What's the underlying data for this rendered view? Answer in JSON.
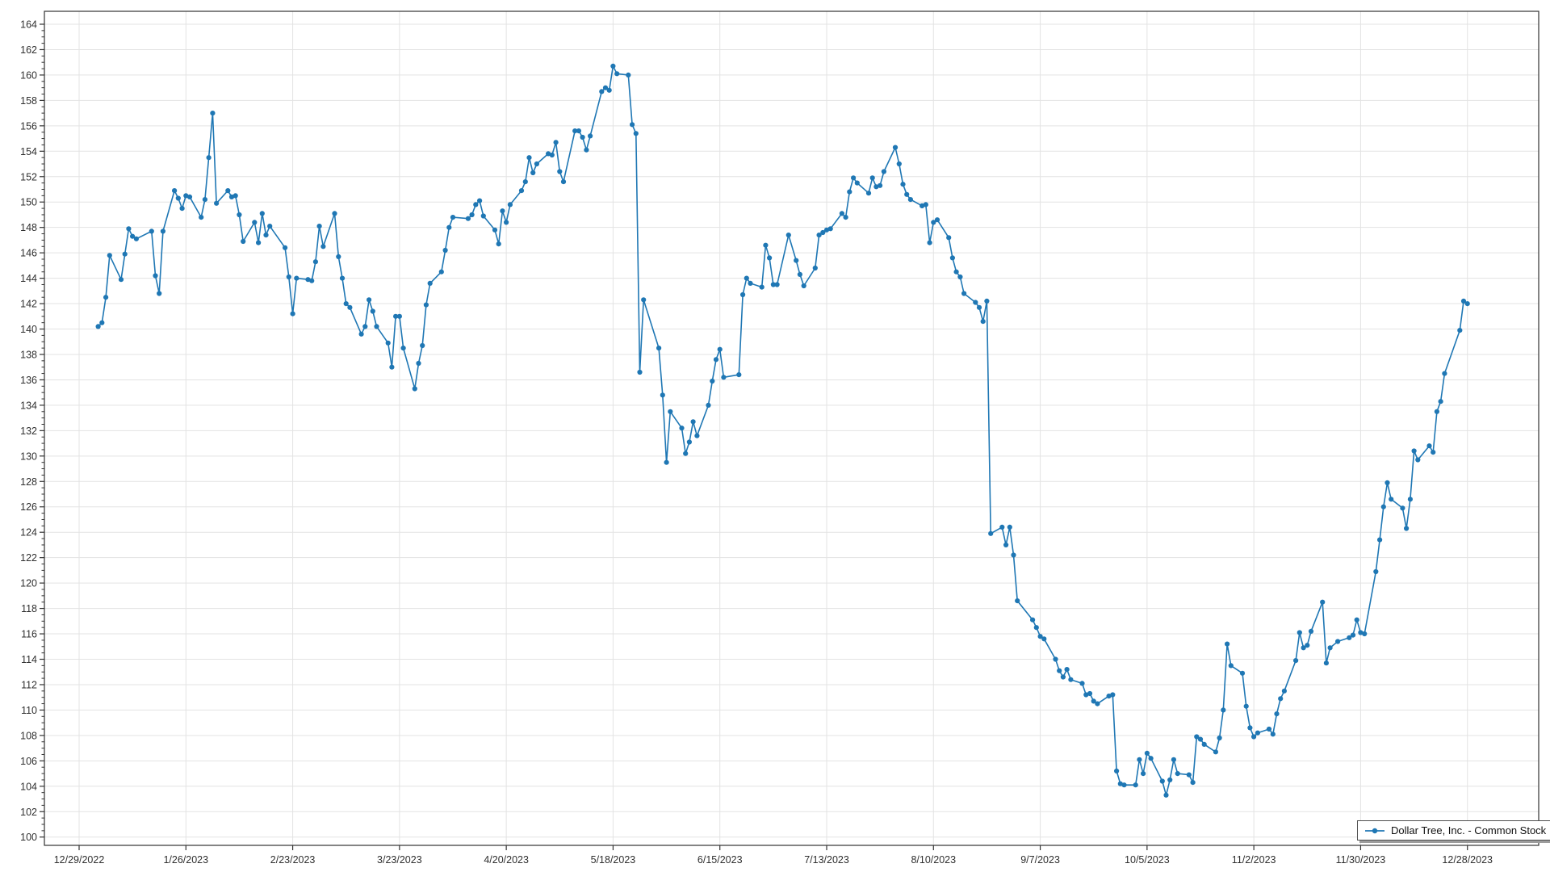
{
  "chart_data": {
    "type": "line",
    "title": "",
    "grid": true,
    "legend": {
      "position": "bottom-right",
      "label": "Dollar Tree, Inc. - Common Stock"
    },
    "x_axis": {
      "start_label": "12/29/2022",
      "labels": [
        "12/29/2022",
        "1/26/2023",
        "2/23/2023",
        "3/23/2023",
        "4/20/2023",
        "5/18/2023",
        "6/15/2023",
        "7/13/2023",
        "8/10/2023",
        "9/7/2023",
        "10/5/2023",
        "11/2/2023",
        "11/30/2023",
        "12/28/2023"
      ]
    },
    "y_axis": {
      "min": 100,
      "max": 164,
      "step": 2,
      "ticks": [
        100,
        102,
        104,
        106,
        108,
        110,
        112,
        114,
        116,
        118,
        120,
        122,
        124,
        126,
        128,
        130,
        132,
        134,
        136,
        138,
        140,
        142,
        144,
        146,
        148,
        150,
        152,
        154,
        156,
        158,
        160,
        162,
        164
      ]
    },
    "series": [
      {
        "name": "Dollar Tree, Inc. - Common Stock",
        "color": "#1f77b4",
        "dates": [
          "1/3/2023",
          "1/4/2023",
          "1/5/2023",
          "1/6/2023",
          "1/9/2023",
          "1/10/2023",
          "1/11/2023",
          "1/12/2023",
          "1/13/2023",
          "1/17/2023",
          "1/18/2023",
          "1/19/2023",
          "1/20/2023",
          "1/23/2023",
          "1/24/2023",
          "1/25/2023",
          "1/26/2023",
          "1/27/2023",
          "1/30/2023",
          "1/31/2023",
          "2/1/2023",
          "2/2/2023",
          "2/3/2023",
          "2/6/2023",
          "2/7/2023",
          "2/8/2023",
          "2/9/2023",
          "2/10/2023",
          "2/13/2023",
          "2/14/2023",
          "2/15/2023",
          "2/16/2023",
          "2/17/2023",
          "2/21/2023",
          "2/22/2023",
          "2/23/2023",
          "2/24/2023",
          "2/27/2023",
          "2/28/2023",
          "3/1/2023",
          "3/2/2023",
          "3/3/2023",
          "3/6/2023",
          "3/7/2023",
          "3/8/2023",
          "3/9/2023",
          "3/10/2023",
          "3/13/2023",
          "3/14/2023",
          "3/15/2023",
          "3/16/2023",
          "3/17/2023",
          "3/20/2023",
          "3/21/2023",
          "3/22/2023",
          "3/23/2023",
          "3/24/2023",
          "3/27/2023",
          "3/28/2023",
          "3/29/2023",
          "3/30/2023",
          "3/31/2023",
          "4/3/2023",
          "4/4/2023",
          "4/5/2023",
          "4/6/2023",
          "4/10/2023",
          "4/11/2023",
          "4/12/2023",
          "4/13/2023",
          "4/14/2023",
          "4/17/2023",
          "4/18/2023",
          "4/19/2023",
          "4/20/2023",
          "4/21/2023",
          "4/24/2023",
          "4/25/2023",
          "4/26/2023",
          "4/27/2023",
          "4/28/2023",
          "5/1/2023",
          "5/2/2023",
          "5/3/2023",
          "5/4/2023",
          "5/5/2023",
          "5/8/2023",
          "5/9/2023",
          "5/10/2023",
          "5/11/2023",
          "5/12/2023",
          "5/15/2023",
          "5/16/2023",
          "5/17/2023",
          "5/18/2023",
          "5/19/2023",
          "5/22/2023",
          "5/23/2023",
          "5/24/2023",
          "5/25/2023",
          "5/26/2023",
          "5/30/2023",
          "5/31/2023",
          "6/1/2023",
          "6/2/2023",
          "6/5/2023",
          "6/6/2023",
          "6/7/2023",
          "6/8/2023",
          "6/9/2023",
          "6/12/2023",
          "6/13/2023",
          "6/14/2023",
          "6/15/2023",
          "6/16/2023",
          "6/20/2023",
          "6/21/2023",
          "6/22/2023",
          "6/23/2023",
          "6/26/2023",
          "6/27/2023",
          "6/28/2023",
          "6/29/2023",
          "6/30/2023",
          "7/3/2023",
          "7/5/2023",
          "7/6/2023",
          "7/7/2023",
          "7/10/2023",
          "7/11/2023",
          "7/12/2023",
          "7/13/2023",
          "7/14/2023",
          "7/17/2023",
          "7/18/2023",
          "7/19/2023",
          "7/20/2023",
          "7/21/2023",
          "7/24/2023",
          "7/25/2023",
          "7/26/2023",
          "7/27/2023",
          "7/28/2023",
          "7/31/2023",
          "8/1/2023",
          "8/2/2023",
          "8/3/2023",
          "8/4/2023",
          "8/7/2023",
          "8/8/2023",
          "8/9/2023",
          "8/10/2023",
          "8/11/2023",
          "8/14/2023",
          "8/15/2023",
          "8/16/2023",
          "8/17/2023",
          "8/18/2023",
          "8/21/2023",
          "8/22/2023",
          "8/23/2023",
          "8/24/2023",
          "8/25/2023",
          "8/28/2023",
          "8/29/2023",
          "8/30/2023",
          "8/31/2023",
          "9/1/2023",
          "9/5/2023",
          "9/6/2023",
          "9/7/2023",
          "9/8/2023",
          "9/11/2023",
          "9/12/2023",
          "9/13/2023",
          "9/14/2023",
          "9/15/2023",
          "9/18/2023",
          "9/19/2023",
          "9/20/2023",
          "9/21/2023",
          "9/22/2023",
          "9/25/2023",
          "9/26/2023",
          "9/27/2023",
          "9/28/2023",
          "9/29/2023",
          "10/2/2023",
          "10/3/2023",
          "10/4/2023",
          "10/5/2023",
          "10/6/2023",
          "10/9/2023",
          "10/10/2023",
          "10/11/2023",
          "10/12/2023",
          "10/13/2023",
          "10/16/2023",
          "10/17/2023",
          "10/18/2023",
          "10/19/2023",
          "10/20/2023",
          "10/23/2023",
          "10/24/2023",
          "10/25/2023",
          "10/26/2023",
          "10/27/2023",
          "10/30/2023",
          "10/31/2023",
          "11/1/2023",
          "11/2/2023",
          "11/3/2023",
          "11/6/2023",
          "11/7/2023",
          "11/8/2023",
          "11/9/2023",
          "11/10/2023",
          "11/13/2023",
          "11/14/2023",
          "11/15/2023",
          "11/16/2023",
          "11/17/2023",
          "11/20/2023",
          "11/21/2023",
          "11/22/2023",
          "11/24/2023",
          "11/27/2023",
          "11/28/2023",
          "11/29/2023",
          "11/30/2023",
          "12/1/2023",
          "12/4/2023",
          "12/5/2023",
          "12/6/2023",
          "12/7/2023",
          "12/8/2023",
          "12/11/2023",
          "12/12/2023",
          "12/13/2023",
          "12/14/2023",
          "12/15/2023",
          "12/18/2023",
          "12/19/2023",
          "12/20/2023",
          "12/21/2023",
          "12/22/2023",
          "12/26/2023",
          "12/27/2023",
          "12/28/2023"
        ],
        "values": [
          140.2,
          140.5,
          142.5,
          145.8,
          143.9,
          145.9,
          147.9,
          147.3,
          147.1,
          147.7,
          144.2,
          142.8,
          147.7,
          150.9,
          150.3,
          149.5,
          150.5,
          150.4,
          148.8,
          150.2,
          153.5,
          157.0,
          149.9,
          150.9,
          150.4,
          150.5,
          149.0,
          146.9,
          148.4,
          146.8,
          149.1,
          147.4,
          148.1,
          146.4,
          144.1,
          141.2,
          144.0,
          143.9,
          143.8,
          145.3,
          148.1,
          146.5,
          149.1,
          145.7,
          144.0,
          142.0,
          141.7,
          139.6,
          140.2,
          142.3,
          141.4,
          140.2,
          138.9,
          137.0,
          141.0,
          141.0,
          138.5,
          135.3,
          137.3,
          138.7,
          141.9,
          143.6,
          144.5,
          146.2,
          148.0,
          148.8,
          148.7,
          149.0,
          149.8,
          150.1,
          148.9,
          147.8,
          146.7,
          149.3,
          148.4,
          149.8,
          150.9,
          151.6,
          153.5,
          152.3,
          153.0,
          153.8,
          153.7,
          154.7,
          152.4,
          151.6,
          155.6,
          155.6,
          155.1,
          154.1,
          155.2,
          158.7,
          159.0,
          158.8,
          160.7,
          160.1,
          160.0,
          156.1,
          155.4,
          136.6,
          142.3,
          138.5,
          134.8,
          129.5,
          133.5,
          132.2,
          130.2,
          131.1,
          132.7,
          131.6,
          134.0,
          135.9,
          137.6,
          138.4,
          136.2,
          136.4,
          142.7,
          144.0,
          143.6,
          143.3,
          146.6,
          145.6,
          143.5,
          143.5,
          147.4,
          145.4,
          144.3,
          143.4,
          144.8,
          147.4,
          147.6,
          147.8,
          147.9,
          149.1,
          148.8,
          150.8,
          151.9,
          151.5,
          150.7,
          151.9,
          151.2,
          151.3,
          152.4,
          154.3,
          153.0,
          151.4,
          150.6,
          150.2,
          149.7,
          149.8,
          146.8,
          148.4,
          148.6,
          147.2,
          145.6,
          144.5,
          144.1,
          142.8,
          142.1,
          141.7,
          140.6,
          142.2,
          123.9,
          124.4,
          123.0,
          124.4,
          122.2,
          118.6,
          117.1,
          116.5,
          115.8,
          115.6,
          114.0,
          113.1,
          112.6,
          113.2,
          112.4,
          112.1,
          111.2,
          111.3,
          110.7,
          110.5,
          111.1,
          111.2,
          105.2,
          104.2,
          104.1,
          104.1,
          106.1,
          105.0,
          106.6,
          106.2,
          104.4,
          103.3,
          104.5,
          106.1,
          105.0,
          104.9,
          104.3,
          107.9,
          107.7,
          107.3,
          106.7,
          107.8,
          110.0,
          115.2,
          113.5,
          112.9,
          110.3,
          108.6,
          107.9,
          108.2,
          108.5,
          108.1,
          109.7,
          110.9,
          111.5,
          113.9,
          116.1,
          114.9,
          115.1,
          116.2,
          118.5,
          113.7,
          114.9,
          115.4,
          115.7,
          115.9,
          117.1,
          116.1,
          116.0,
          120.9,
          123.4,
          126.0,
          127.9,
          126.6,
          125.9,
          124.3,
          126.6,
          130.4,
          129.7,
          130.8,
          130.3,
          133.5,
          134.3,
          136.5,
          139.9,
          142.2,
          142.0
        ]
      }
    ],
    "colors": {
      "line": "#1f77b4",
      "grid": "#e3e3e3",
      "axis": "#333333",
      "label": "#2f2f2f"
    }
  }
}
